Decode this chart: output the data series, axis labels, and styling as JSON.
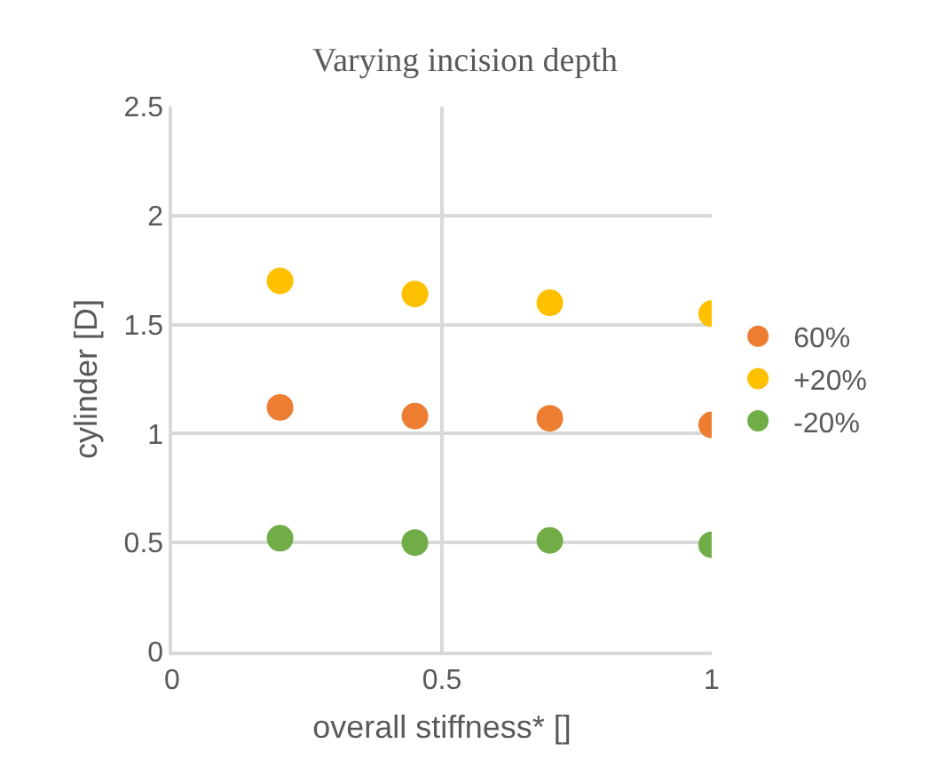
{
  "chart_data": {
    "type": "scatter",
    "title": "Varying incision depth",
    "xlabel": "overall stiffness* []",
    "ylabel": "cylinder [D]",
    "x": [
      0.2,
      0.45,
      0.7,
      1.0
    ],
    "series": [
      {
        "name": "60%",
        "color": "#ed7d31",
        "values": [
          1.12,
          1.08,
          1.07,
          1.04
        ]
      },
      {
        "name": "+20%",
        "color": "#ffc000",
        "values": [
          1.7,
          1.64,
          1.6,
          1.55
        ]
      },
      {
        "name": "-20%",
        "color": "#70ad47",
        "values": [
          0.52,
          0.5,
          0.51,
          0.49
        ]
      }
    ],
    "xlim": [
      0,
      1
    ],
    "xticks": [
      0,
      0.5,
      1
    ],
    "ylim": [
      0,
      2.5
    ],
    "yticks": [
      0,
      0.5,
      1,
      1.5,
      2,
      2.5
    ],
    "grid": true,
    "legend": "right",
    "marker": "circle"
  }
}
